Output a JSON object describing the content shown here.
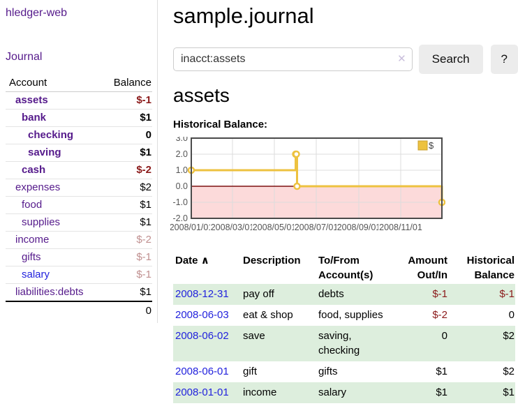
{
  "brand": "hledger-web",
  "sidebar": {
    "journal_link": "Journal",
    "accounts": {
      "header": {
        "account": "Account",
        "balance": "Balance"
      },
      "rows": [
        {
          "name": "assets",
          "balance": "$-1",
          "level": 1,
          "bold": true,
          "neg": "strong",
          "link": "purple"
        },
        {
          "name": "bank",
          "balance": "$1",
          "level": 2,
          "bold": true,
          "neg": null,
          "link": "purple"
        },
        {
          "name": "checking",
          "balance": "0",
          "level": 3,
          "bold": true,
          "neg": null,
          "link": "purple"
        },
        {
          "name": "saving",
          "balance": "$1",
          "level": 3,
          "bold": true,
          "neg": null,
          "link": "purple"
        },
        {
          "name": "cash",
          "balance": "$-2",
          "level": 2,
          "bold": true,
          "neg": "strong",
          "link": "purple"
        },
        {
          "name": "expenses",
          "balance": "$2",
          "level": 1,
          "bold": false,
          "neg": null,
          "link": "purple"
        },
        {
          "name": "food",
          "balance": "$1",
          "level": 2,
          "bold": false,
          "neg": null,
          "link": "purple"
        },
        {
          "name": "supplies",
          "balance": "$1",
          "level": 2,
          "bold": false,
          "neg": null,
          "link": "purple"
        },
        {
          "name": "income",
          "balance": "$-2",
          "level": 1,
          "bold": false,
          "neg": "muted",
          "link": "purple"
        },
        {
          "name": "gifts",
          "balance": "$-1",
          "level": 2,
          "bold": false,
          "neg": "muted",
          "link": "purple"
        },
        {
          "name": "salary",
          "balance": "$-1",
          "level": 2,
          "bold": false,
          "neg": "muted",
          "link": "blue"
        },
        {
          "name": "liabilities:debts",
          "balance": "$1",
          "level": 1,
          "bold": false,
          "neg": null,
          "link": "purple"
        }
      ],
      "total": "0"
    }
  },
  "main": {
    "title": "sample.journal",
    "search": {
      "value": "inacct:assets",
      "clear": "✕",
      "search_button": "Search",
      "help_button": "?"
    },
    "heading": "assets",
    "chart_label": "Historical Balance:"
  },
  "chart_data": {
    "type": "line",
    "title": "Historical Balance",
    "step": true,
    "legend": [
      {
        "label": "$",
        "color": "#EDC240"
      }
    ],
    "legend_position": "top-right",
    "x_range": [
      "2008-01-01",
      "2008-12-31"
    ],
    "x_ticks": [
      "2008/01/01",
      "2008/03/01",
      "2008/05/01",
      "2008/07/01",
      "2008/09/01",
      "2008/11/01"
    ],
    "y_ticks": [
      "3.0",
      "2.0",
      "1.0",
      "0.0",
      "-1.0",
      "-2.0"
    ],
    "ylim": [
      -2,
      3
    ],
    "grid": true,
    "series": [
      {
        "name": "$",
        "points": [
          {
            "x": "2008-01-01",
            "y": 1
          },
          {
            "x": "2008-06-01",
            "y": 2
          },
          {
            "x": "2008-06-02",
            "y": 2
          },
          {
            "x": "2008-06-03",
            "y": 0
          },
          {
            "x": "2008-12-31",
            "y": -1
          }
        ]
      }
    ],
    "styles": {
      "line_color": "#EDC240",
      "marker_fill": "#ffffff",
      "negative_region": "#fcdada",
      "zero_line": "#7d1010",
      "grid_color": "#dcdcdc",
      "border_color": "#4a4a4a",
      "tick_text": "#545454",
      "legend_swatch_border": "#c9a02f"
    }
  },
  "register": {
    "columns": [
      {
        "line1": "Date",
        "line2": "",
        "align": "left",
        "sort_icon": "∧"
      },
      {
        "line1": "Description",
        "line2": "",
        "align": "left"
      },
      {
        "line1": "To/From",
        "line2": "Account(s)",
        "align": "left"
      },
      {
        "line1": "Amount",
        "line2": "Out/In",
        "align": "right"
      },
      {
        "line1": "Historical",
        "line2": "Balance",
        "align": "right"
      }
    ],
    "rows": [
      {
        "date": "2008-12-31",
        "description": "pay off",
        "accounts": "debts",
        "amount": "$-1",
        "amount_neg": true,
        "balance": "$-1",
        "balance_neg": true
      },
      {
        "date": "2008-06-03",
        "description": "eat & shop",
        "accounts": "food, supplies",
        "amount": "$-2",
        "amount_neg": true,
        "balance": "0",
        "balance_neg": false
      },
      {
        "date": "2008-06-02",
        "description": "save",
        "accounts": "saving, checking",
        "amount": "0",
        "amount_neg": false,
        "balance": "$2",
        "balance_neg": false
      },
      {
        "date": "2008-06-01",
        "description": "gift",
        "accounts": "gifts",
        "amount": "$1",
        "amount_neg": false,
        "balance": "$2",
        "balance_neg": false
      },
      {
        "date": "2008-01-01",
        "description": "income",
        "accounts": "salary",
        "amount": "$1",
        "amount_neg": false,
        "balance": "$1",
        "balance_neg": false
      }
    ]
  },
  "colors": {
    "link_purple": "#551a8b",
    "link_blue": "#2222dd",
    "negative": "#8b1a1a",
    "negative_muted": "#c09090",
    "row_stripe_green": "#ddeedd",
    "button_bg": "#ececec",
    "divider": "#dddddd"
  }
}
